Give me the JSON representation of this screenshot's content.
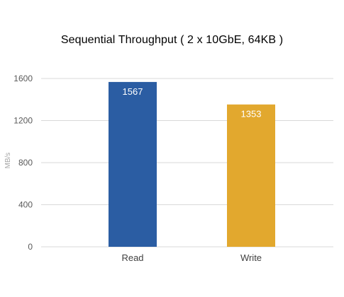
{
  "chart_data": {
    "type": "bar",
    "title": "Sequential Throughput ( 2 x 10GbE, 64KB )",
    "xlabel": "",
    "ylabel": "MB/s",
    "categories": [
      "Read",
      "Write"
    ],
    "values": [
      1567,
      1353
    ],
    "data_labels": [
      "1567",
      "1353"
    ],
    "ylim": [
      0,
      1600
    ],
    "yticks": [
      0,
      400,
      800,
      1200,
      1600
    ],
    "ytick_labels": [
      "0",
      "400",
      "800",
      "1200",
      "1600"
    ],
    "grid": true,
    "legend": "none",
    "colors": [
      "#2B5DA3",
      "#E2A82E"
    ],
    "grid_color": "#d9d9d9",
    "tick_label_color": "#595959",
    "data_label_color": "#ffffff"
  }
}
